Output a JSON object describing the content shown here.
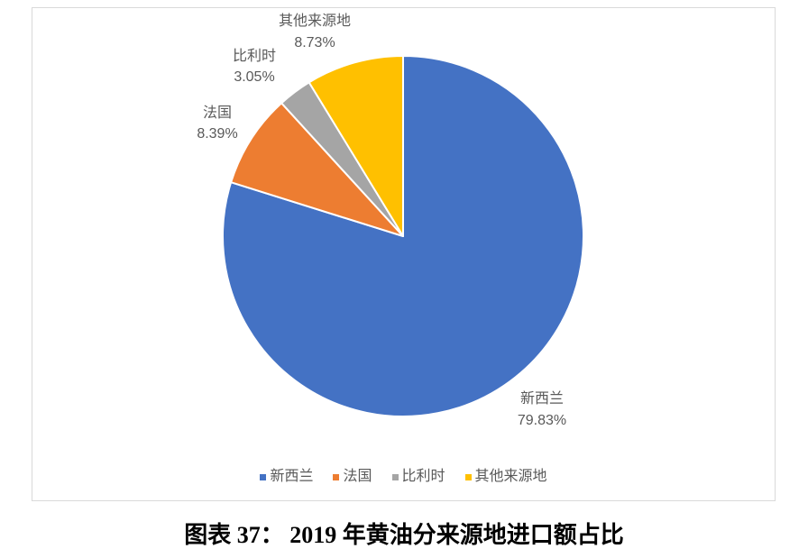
{
  "caption": "图表 37： 2019 年黄油分来源地进口额占比",
  "chart_data": {
    "type": "pie",
    "categories": [
      "新西兰",
      "法国",
      "比利时",
      "其他来源地"
    ],
    "values": [
      79.83,
      8.39,
      3.05,
      8.73
    ],
    "value_labels": [
      "79.83%",
      "8.39%",
      "3.05%",
      "8.73%"
    ],
    "colors": [
      "#4472C4",
      "#ED7D31",
      "#A5A5A5",
      "#FFC000"
    ],
    "legend": "bottom"
  }
}
